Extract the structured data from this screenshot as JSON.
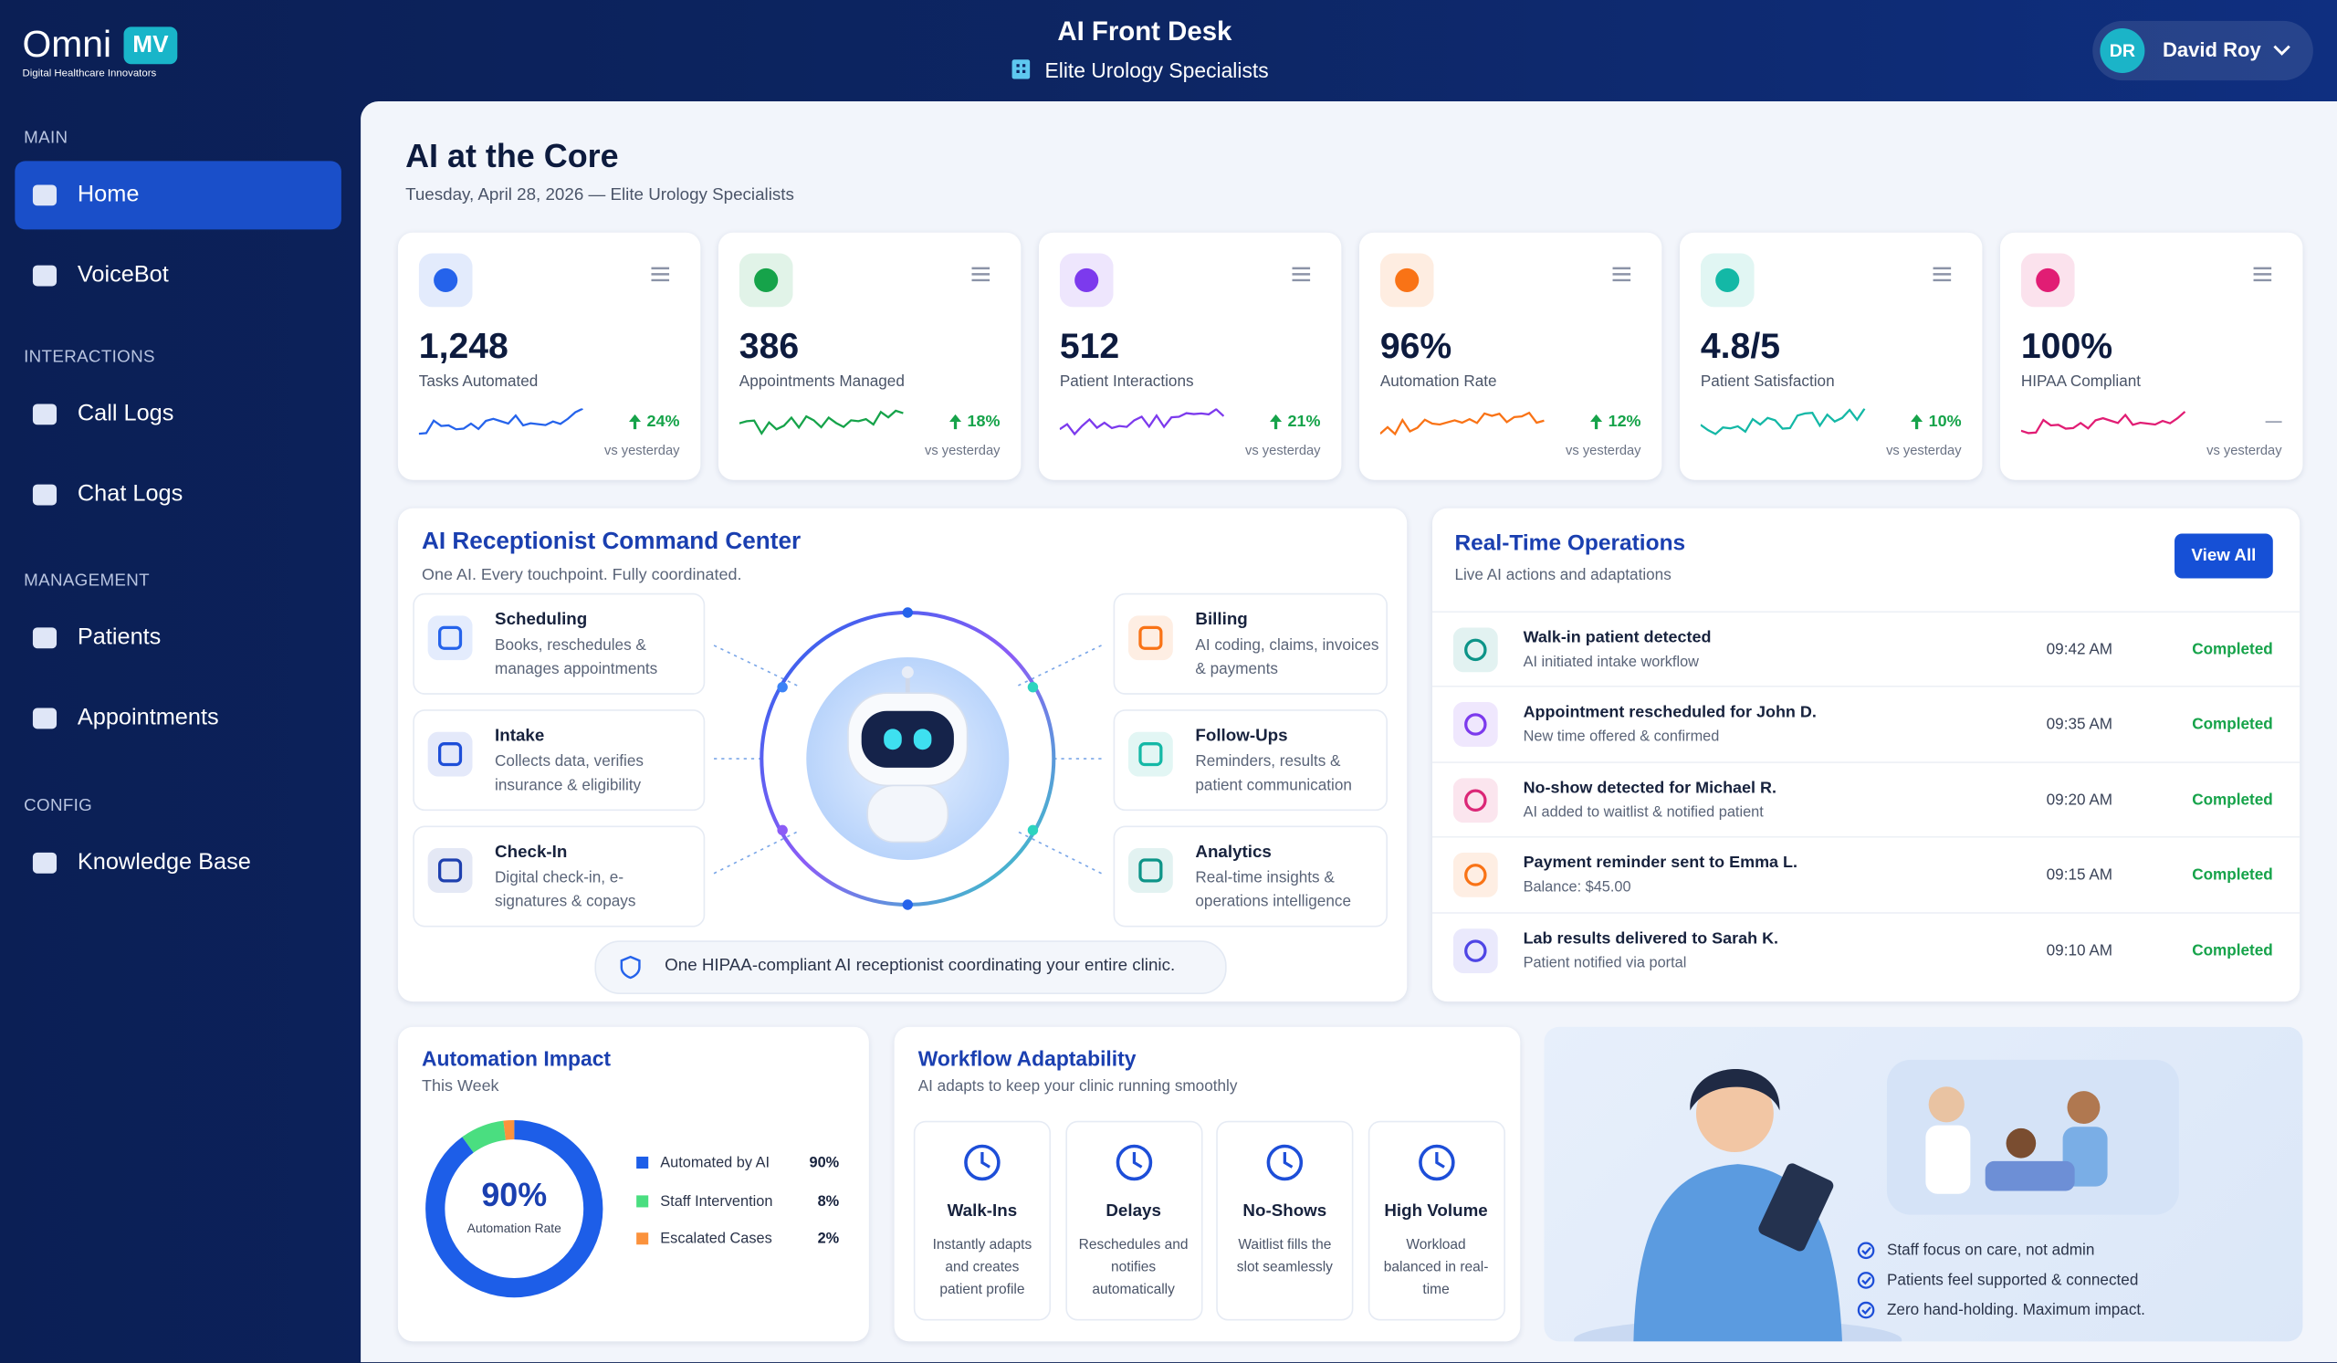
{
  "brand": {
    "name": "Omni",
    "badge": "MV",
    "tagline": "Digital Healthcare Innovators"
  },
  "header": {
    "title": "AI Front Desk",
    "clinic": "Elite Urology Specialists",
    "user_initials": "DR",
    "user_name": "David Roy"
  },
  "sidebar": {
    "sections": [
      {
        "label": "MAIN",
        "items": [
          "Home",
          "VoiceBot"
        ]
      },
      {
        "label": "INTERACTIONS",
        "items": [
          "Call Logs",
          "Chat Logs"
        ]
      },
      {
        "label": "MANAGEMENT",
        "items": [
          "Patients",
          "Appointments"
        ]
      },
      {
        "label": "CONFIG",
        "items": [
          "Knowledge Base"
        ]
      }
    ]
  },
  "page": {
    "title": "AI at the Core",
    "subtitle": "Tuesday, April 28, 2026 — Elite Urology Specialists"
  },
  "stats": [
    {
      "value": "1,248",
      "label": "Tasks Automated",
      "change": "24%",
      "trend": "up",
      "note": "vs yesterday",
      "color": "#2563eb"
    },
    {
      "value": "386",
      "label": "Appointments Managed",
      "change": "18%",
      "trend": "up",
      "note": "vs yesterday",
      "color": "#16a34a"
    },
    {
      "value": "512",
      "label": "Patient Interactions",
      "change": "21%",
      "trend": "up",
      "note": "vs yesterday",
      "color": "#7c3aed"
    },
    {
      "value": "96%",
      "label": "Automation Rate",
      "change": "12%",
      "trend": "up",
      "note": "vs yesterday",
      "color": "#f97316"
    },
    {
      "value": "4.8/5",
      "label": "Patient Satisfaction",
      "change": "10%",
      "trend": "up",
      "note": "vs yesterday",
      "color": "#14b8a6"
    },
    {
      "value": "100%",
      "label": "HIPAA Compliant",
      "change": "—",
      "trend": "flat",
      "note": "vs yesterday",
      "color": "#e11d74"
    }
  ],
  "command_center": {
    "title": "AI Receptionist Command Center",
    "subtitle": "One AI. Every touchpoint. Fully coordinated.",
    "left": [
      {
        "title": "Scheduling",
        "description": "Books, reschedules & manages appointments",
        "color": "#2563eb"
      },
      {
        "title": "Intake",
        "description": "Collects data, verifies insurance & eligibility",
        "color": "#1d4ed8"
      },
      {
        "title": "Check-In",
        "description": "Digital check-in, e-signatures & copays",
        "color": "#1e40af"
      }
    ],
    "right": [
      {
        "title": "Billing",
        "description": "AI coding, claims, invoices & payments",
        "color": "#f97316"
      },
      {
        "title": "Follow-Ups",
        "description": "Reminders, results & patient communication",
        "color": "#14b8a6"
      },
      {
        "title": "Analytics",
        "description": "Real-time insights & operations intelligence",
        "color": "#0d9488"
      }
    ],
    "footer": "One HIPAA-compliant AI receptionist coordinating your entire clinic."
  },
  "operations": {
    "title": "Real-Time Operations",
    "subtitle": "Live AI actions and adaptations",
    "button": "View All",
    "rows": [
      {
        "title": "Walk-in patient detected",
        "detail": "AI initiated intake workflow",
        "time": "09:42 AM",
        "status": "Completed",
        "color": "#0d9488"
      },
      {
        "title": "Appointment rescheduled for John D.",
        "detail": "New time offered & confirmed",
        "time": "09:35 AM",
        "status": "Completed",
        "color": "#7c3aed"
      },
      {
        "title": "No-show detected for Michael R.",
        "detail": "AI added to waitlist & notified patient",
        "time": "09:20 AM",
        "status": "Completed",
        "color": "#db2777"
      },
      {
        "title": "Payment reminder sent to Emma L.",
        "detail": "Balance: $45.00",
        "time": "09:15 AM",
        "status": "Completed",
        "color": "#f97316"
      },
      {
        "title": "Lab results delivered to Sarah K.",
        "detail": "Patient notified via portal",
        "time": "09:10 AM",
        "status": "Completed",
        "color": "#4f46e5"
      }
    ]
  },
  "automation": {
    "title": "Automation Impact",
    "subtitle": "This Week",
    "center_value": "90%",
    "center_label": "Automation Rate",
    "categories": [
      "Automated by AI",
      "Staff Intervention",
      "Escalated Cases"
    ],
    "values": [
      90,
      8,
      2
    ],
    "value_labels": [
      "90%",
      "8%",
      "2%"
    ],
    "colors": [
      "#1d5ee8",
      "#4ade80",
      "#fb923c"
    ]
  },
  "workflow": {
    "title": "Workflow Adaptability",
    "subtitle": "AI adapts to keep your clinic running smoothly",
    "cards": [
      {
        "title": "Walk-Ins",
        "description": "Instantly adapts and creates patient profile"
      },
      {
        "title": "Delays",
        "description": "Reschedules and notifies automatically"
      },
      {
        "title": "No-Shows",
        "description": "Waitlist fills the slot seamlessly"
      },
      {
        "title": "High Volume",
        "description": "Workload balanced in real-time"
      }
    ]
  },
  "benefits": [
    "Staff focus on care, not admin",
    "Patients feel supported & connected",
    "Zero hand-holding. Maximum impact."
  ]
}
